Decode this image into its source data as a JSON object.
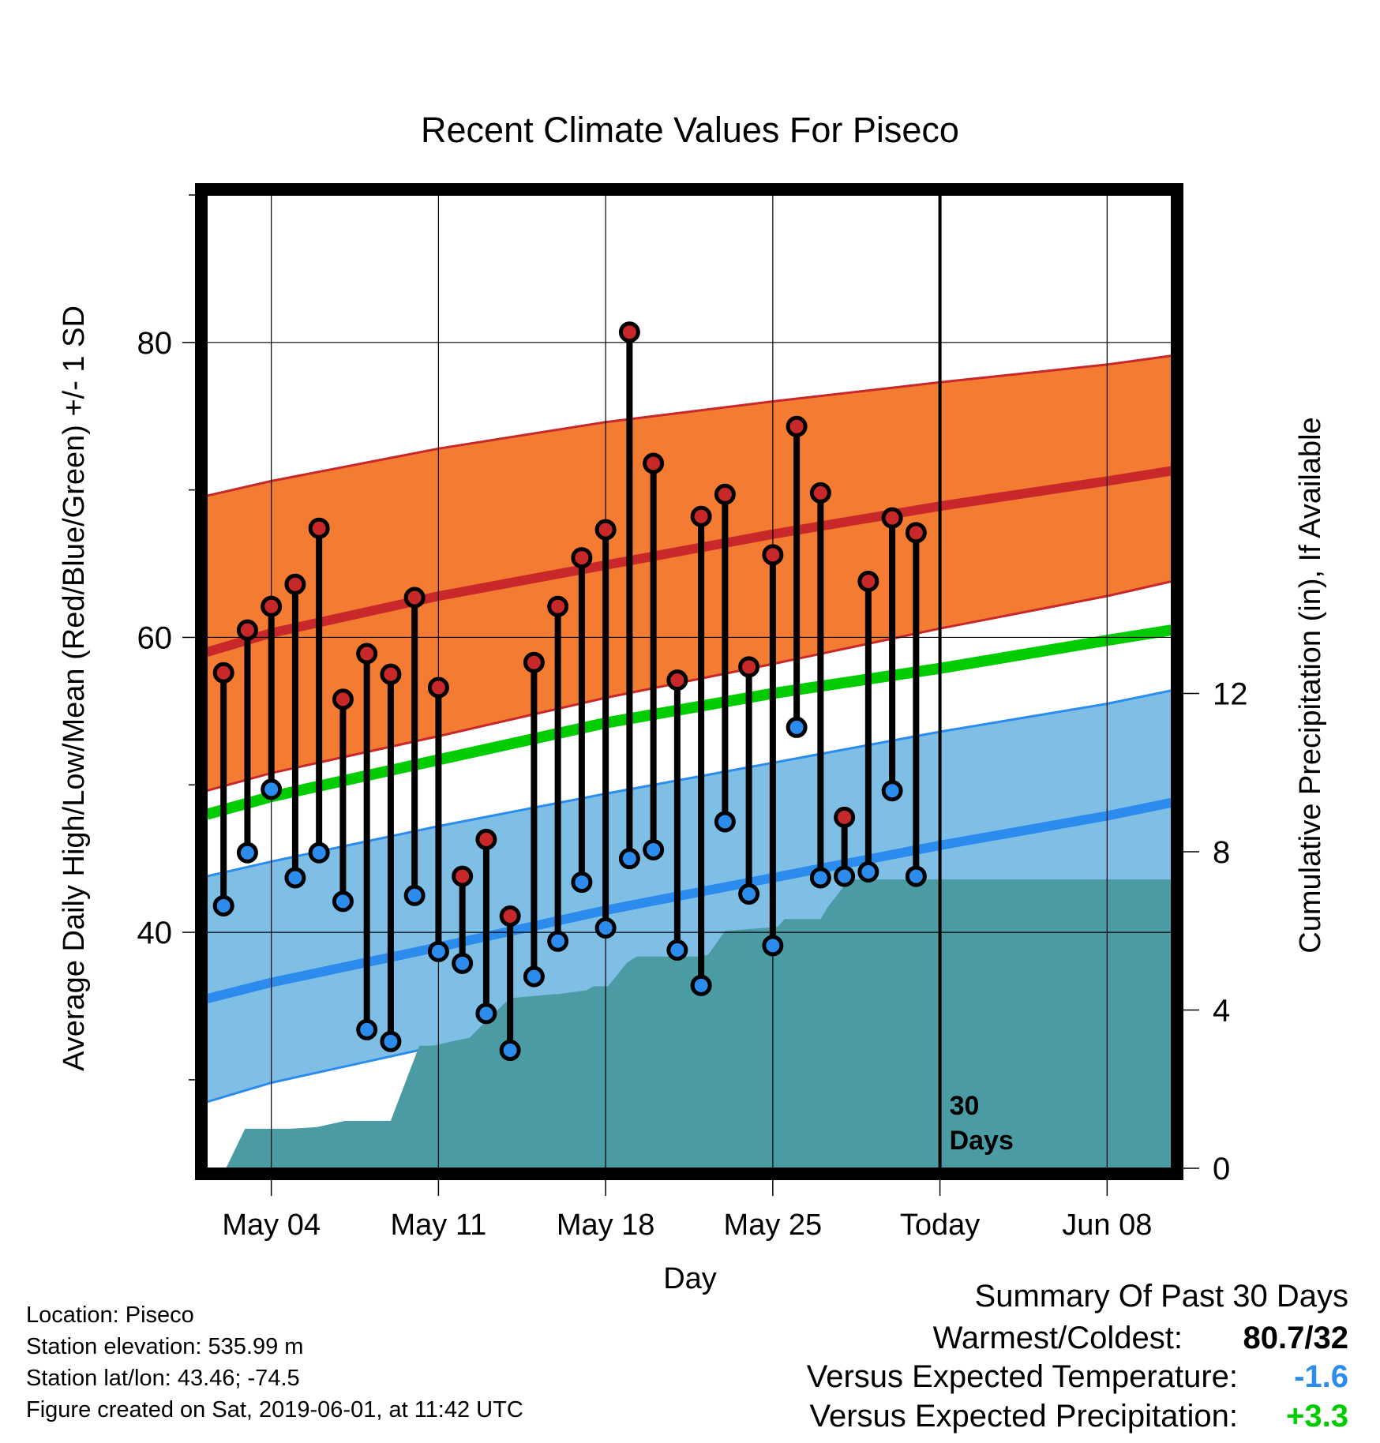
{
  "footer": {
    "location": "Location: Piseco",
    "elevation": "Station elevation: 535.99 m",
    "latlon": "Station lat/lon: 43.46; -74.5",
    "created": "Figure created on Sat, 2019-06-01, at 11:42 UTC"
  },
  "summary": {
    "heading": "Summary Of Past 30 Days",
    "warm_cold_label": "Warmest/Coldest:",
    "warm_cold_value": "80.7/32",
    "temp_label": "Versus Expected Temperature:",
    "temp_value": "-1.6",
    "temp_color": "#2b8cee",
    "precip_label": "Versus Expected Precipitation:",
    "precip_value": "+3.3",
    "precip_color": "#00cc00"
  },
  "chart_data": {
    "type": "line",
    "title": "Recent Climate Values For Piseco",
    "xlabel": "Day",
    "ylabel": "Average Daily High/Low/Mean (Red/Blue/Green) +/- 1 SD",
    "y2label": "Cumulative Precipitation (in), If Available",
    "x_ticks": [
      "May 04",
      "May 11",
      "May 18",
      "May 25",
      "Today",
      "Jun 08"
    ],
    "x_tick_days": [
      4,
      11,
      18,
      25,
      32,
      39
    ],
    "x_range": [
      1.3,
      41.7
    ],
    "ylim": [
      24,
      90
    ],
    "y_ticks": [
      40,
      60,
      80
    ],
    "y2lim": [
      0,
      24.6
    ],
    "y2_ticks": [
      0,
      4,
      8,
      12
    ],
    "today_day": 32,
    "today_note": [
      "30",
      "Days"
    ],
    "colors": {
      "high": "#c8282a",
      "high_band": "#f47b32",
      "low": "#2b8cee",
      "low_band": "#7fbfe6",
      "mean": "#00cc00",
      "precip": "#4a9ba3"
    },
    "normals": {
      "days": [
        1.3,
        4,
        11,
        18,
        25,
        32,
        39,
        41.7
      ],
      "high_mean": [
        59,
        60.3,
        62.8,
        64.9,
        67,
        68.9,
        70.6,
        71.3
      ],
      "high_upper": [
        69.6,
        70.6,
        72.8,
        74.6,
        76,
        77.3,
        78.5,
        79.1
      ],
      "high_lower": [
        49.6,
        50.8,
        53.3,
        55.9,
        58.2,
        60.6,
        62.8,
        63.8
      ],
      "mean": [
        48,
        49.2,
        51.7,
        54.2,
        56.2,
        57.9,
        59.8,
        60.5
      ],
      "low_mean": [
        35.5,
        36.6,
        39,
        41.5,
        43.7,
        45.9,
        47.9,
        48.8
      ],
      "low_upper": [
        43.8,
        44.8,
        47.2,
        49.4,
        51.5,
        53.6,
        55.5,
        56.4
      ],
      "low_lower": [
        28.5,
        29.8,
        32.3,
        34.4,
        36.6,
        38.6,
        40.6,
        41.2
      ]
    },
    "observations": {
      "days": [
        2,
        3,
        4,
        5,
        6,
        7,
        8,
        9,
        10,
        11,
        12,
        13,
        14,
        15,
        16,
        17,
        18,
        19,
        20,
        21,
        22,
        23,
        24,
        25,
        26,
        27,
        28,
        29,
        30,
        31
      ],
      "high": [
        57.6,
        60.5,
        62.1,
        63.6,
        67.4,
        55.8,
        58.9,
        57.5,
        62.7,
        56.6,
        43.8,
        46.3,
        41.1,
        58.3,
        62.1,
        65.4,
        67.3,
        80.7,
        71.8,
        57.1,
        68.2,
        69.7,
        58,
        65.6,
        74.3,
        69.8,
        47.8,
        63.8,
        68.1,
        67.1
      ],
      "low": [
        41.8,
        45.4,
        49.7,
        43.7,
        45.4,
        42.1,
        33.4,
        32.6,
        42.5,
        38.7,
        37.9,
        34.5,
        32,
        37,
        39.4,
        43.4,
        40.3,
        45,
        45.6,
        38.8,
        36.4,
        47.5,
        42.6,
        39.1,
        53.9,
        43.7,
        43.8,
        44.1,
        49.6,
        43.8
      ]
    },
    "precip": {
      "days": [
        2.1,
        2.9,
        4.8,
        5.9,
        7.1,
        8.6,
        9,
        10.2,
        10.8,
        11.5,
        12.3,
        13.3,
        14,
        15.8,
        16,
        17.2,
        17.5,
        18.1,
        18.9,
        19.3,
        20,
        21.3,
        22,
        22.3,
        23,
        25.2,
        25.5,
        27,
        27.3,
        28.2,
        29,
        41.7
      ],
      "values": [
        0,
        1,
        1,
        1.04,
        1.2,
        1.2,
        1.2,
        3.1,
        3.1,
        3.2,
        3.3,
        3.9,
        4.3,
        4.4,
        4.4,
        4.5,
        4.6,
        4.6,
        5.2,
        5.35,
        5.35,
        5.35,
        5.35,
        5.4,
        6,
        6.1,
        6.3,
        6.3,
        6.6,
        7.3,
        7.3,
        7.3
      ]
    }
  }
}
